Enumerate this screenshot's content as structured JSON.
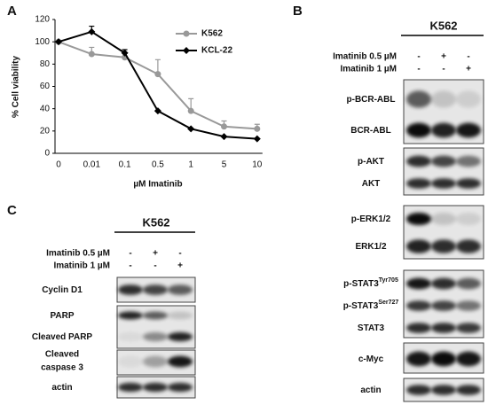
{
  "panels": [
    "A",
    "B",
    "C"
  ],
  "chart_data": {
    "type": "line",
    "xlabel": "µM Imatinib",
    "ylabel": "% Cell viability",
    "categories": [
      "0",
      "0.01",
      "0.1",
      "0.5",
      "1",
      "5",
      "10"
    ],
    "series": [
      {
        "name": "K562",
        "color": "#999999",
        "marker": "circle",
        "values": [
          100,
          89,
          86,
          71,
          38,
          24,
          22
        ],
        "errors": [
          0,
          6,
          4,
          13,
          11,
          5,
          4
        ]
      },
      {
        "name": "KCL-22",
        "color": "#000000",
        "marker": "diamond",
        "values": [
          100,
          109,
          90,
          38,
          22,
          15,
          13
        ],
        "errors": [
          0,
          5,
          3,
          0,
          0,
          0,
          0
        ]
      }
    ],
    "ylim": [
      0,
      120
    ],
    "yticks": [
      0,
      20,
      40,
      60,
      80,
      100,
      120
    ],
    "grid": false
  },
  "blot_b": {
    "header": "K562",
    "treatments": [
      {
        "label": "Imatinib 0.5 µM",
        "marks": [
          "-",
          "+",
          "-"
        ]
      },
      {
        "label": "Imatinib 1 µM",
        "marks": [
          "-",
          "-",
          "+"
        ]
      }
    ],
    "bands": [
      {
        "label": "p-BCR-ABL"
      },
      {
        "label": "BCR-ABL"
      },
      {
        "label": "p-AKT"
      },
      {
        "label": "AKT"
      },
      {
        "label": "p-ERK1/2"
      },
      {
        "label": "ERK1/2"
      },
      {
        "label": "p-STAT3",
        "superscript": "Tyr705"
      },
      {
        "label": "p-STAT3",
        "superscript": "Ser727"
      },
      {
        "label": "STAT3"
      },
      {
        "label": "c-Myc"
      },
      {
        "label": "actin"
      }
    ]
  },
  "blot_c": {
    "header": "K562",
    "treatments": [
      {
        "label": "Imatinib 0.5 µM",
        "marks": [
          "-",
          "+",
          "-"
        ]
      },
      {
        "label": "Imatinib 1 µM",
        "marks": [
          "-",
          "-",
          "+"
        ]
      }
    ],
    "bands": [
      {
        "label": "Cyclin D1"
      },
      {
        "label": "PARP"
      },
      {
        "label": "Cleaved PARP"
      },
      {
        "lines": [
          "Cleaved",
          "caspase 3"
        ]
      },
      {
        "label": "actin"
      }
    ]
  }
}
